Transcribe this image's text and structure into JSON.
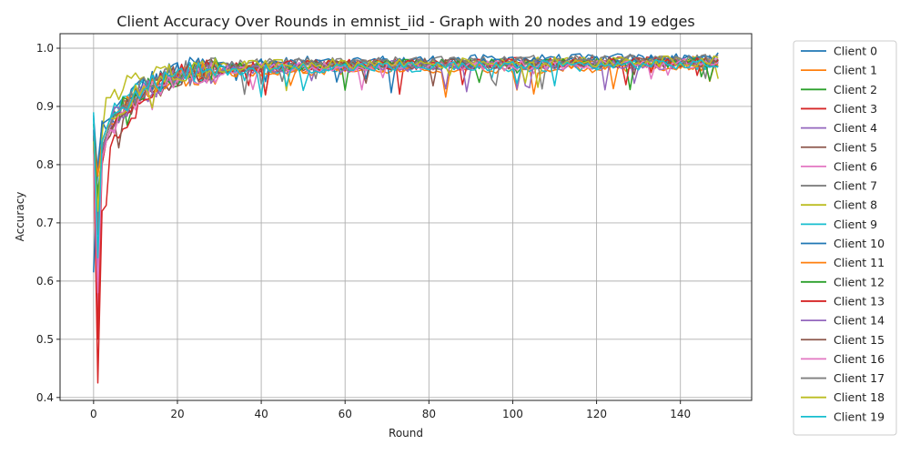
{
  "chart_data": {
    "type": "line",
    "title": "Client Accuracy Over Rounds in emnist_iid - Graph with 20 nodes and 19 edges",
    "xlabel": "Round",
    "ylabel": "Accuracy",
    "xlim": [
      -8,
      157
    ],
    "ylim": [
      0.395,
      1.025
    ],
    "x_ticks": [
      0,
      20,
      40,
      60,
      80,
      100,
      120,
      140
    ],
    "y_ticks": [
      0.4,
      0.5,
      0.6,
      0.7,
      0.8,
      0.9,
      1.0
    ],
    "y_tick_labels": [
      "0.4",
      "0.5",
      "0.6",
      "0.7",
      "0.8",
      "0.9",
      "1.0"
    ],
    "rounds": 150,
    "grid": true,
    "legend_position": "outside-right",
    "series": [
      {
        "name": "Client 0",
        "color": "#1f77b4",
        "start": [
          0.885,
          0.78,
          0.875,
          0.86,
          0.88
        ],
        "plateau": 0.977
      },
      {
        "name": "Client 1",
        "color": "#ff7f0e",
        "start": [
          0.86,
          0.7,
          0.83,
          0.85,
          0.87
        ],
        "plateau": 0.962
      },
      {
        "name": "Client 2",
        "color": "#2ca02c",
        "start": [
          0.87,
          0.75,
          0.82,
          0.84,
          0.86
        ],
        "plateau": 0.97
      },
      {
        "name": "Client 3",
        "color": "#d62728",
        "start": [
          0.84,
          0.425,
          0.72,
          0.73,
          0.83
        ],
        "plateau": 0.972
      },
      {
        "name": "Client 4",
        "color": "#9467bd",
        "start": [
          0.86,
          0.6,
          0.8,
          0.84,
          0.86
        ],
        "plateau": 0.968
      },
      {
        "name": "Client 5",
        "color": "#8c564b",
        "start": [
          0.85,
          0.72,
          0.83,
          0.84,
          0.85
        ],
        "plateau": 0.97
      },
      {
        "name": "Client 6",
        "color": "#e377c2",
        "start": [
          0.84,
          0.55,
          0.81,
          0.84,
          0.86
        ],
        "plateau": 0.968
      },
      {
        "name": "Client 7",
        "color": "#7f7f7f",
        "start": [
          0.85,
          0.68,
          0.82,
          0.85,
          0.87
        ],
        "plateau": 0.975
      },
      {
        "name": "Client 8",
        "color": "#bcbd22",
        "start": [
          0.83,
          0.7,
          0.85,
          0.915,
          0.915
        ],
        "plateau": 0.972
      },
      {
        "name": "Client 9",
        "color": "#17becf",
        "start": [
          0.89,
          0.62,
          0.84,
          0.86,
          0.88
        ],
        "plateau": 0.965
      },
      {
        "name": "Client 10",
        "color": "#1f77b4",
        "start": [
          0.615,
          0.8,
          0.87,
          0.875,
          0.88
        ],
        "plateau": 0.973
      },
      {
        "name": "Client 11",
        "color": "#ff7f0e",
        "start": [
          0.85,
          0.78,
          0.84,
          0.86,
          0.87
        ],
        "plateau": 0.965
      },
      {
        "name": "Client 12",
        "color": "#2ca02c",
        "start": [
          0.86,
          0.73,
          0.83,
          0.85,
          0.87
        ],
        "plateau": 0.97
      },
      {
        "name": "Client 13",
        "color": "#d62728",
        "start": [
          0.85,
          0.5,
          0.8,
          0.84,
          0.86
        ],
        "plateau": 0.97
      },
      {
        "name": "Client 14",
        "color": "#9467bd",
        "start": [
          0.86,
          0.63,
          0.82,
          0.85,
          0.87
        ],
        "plateau": 0.966
      },
      {
        "name": "Client 15",
        "color": "#8c564b",
        "start": [
          0.85,
          0.71,
          0.82,
          0.84,
          0.86
        ],
        "plateau": 0.97
      },
      {
        "name": "Client 16",
        "color": "#e377c2",
        "start": [
          0.84,
          0.58,
          0.81,
          0.84,
          0.86
        ],
        "plateau": 0.967
      },
      {
        "name": "Client 17",
        "color": "#7f7f7f",
        "start": [
          0.85,
          0.69,
          0.83,
          0.85,
          0.87
        ],
        "plateau": 0.974
      },
      {
        "name": "Client 18",
        "color": "#bcbd22",
        "start": [
          0.84,
          0.72,
          0.84,
          0.86,
          0.88
        ],
        "plateau": 0.972
      },
      {
        "name": "Client 19",
        "color": "#17becf",
        "start": [
          0.88,
          0.64,
          0.84,
          0.86,
          0.88
        ],
        "plateau": 0.966
      }
    ]
  }
}
